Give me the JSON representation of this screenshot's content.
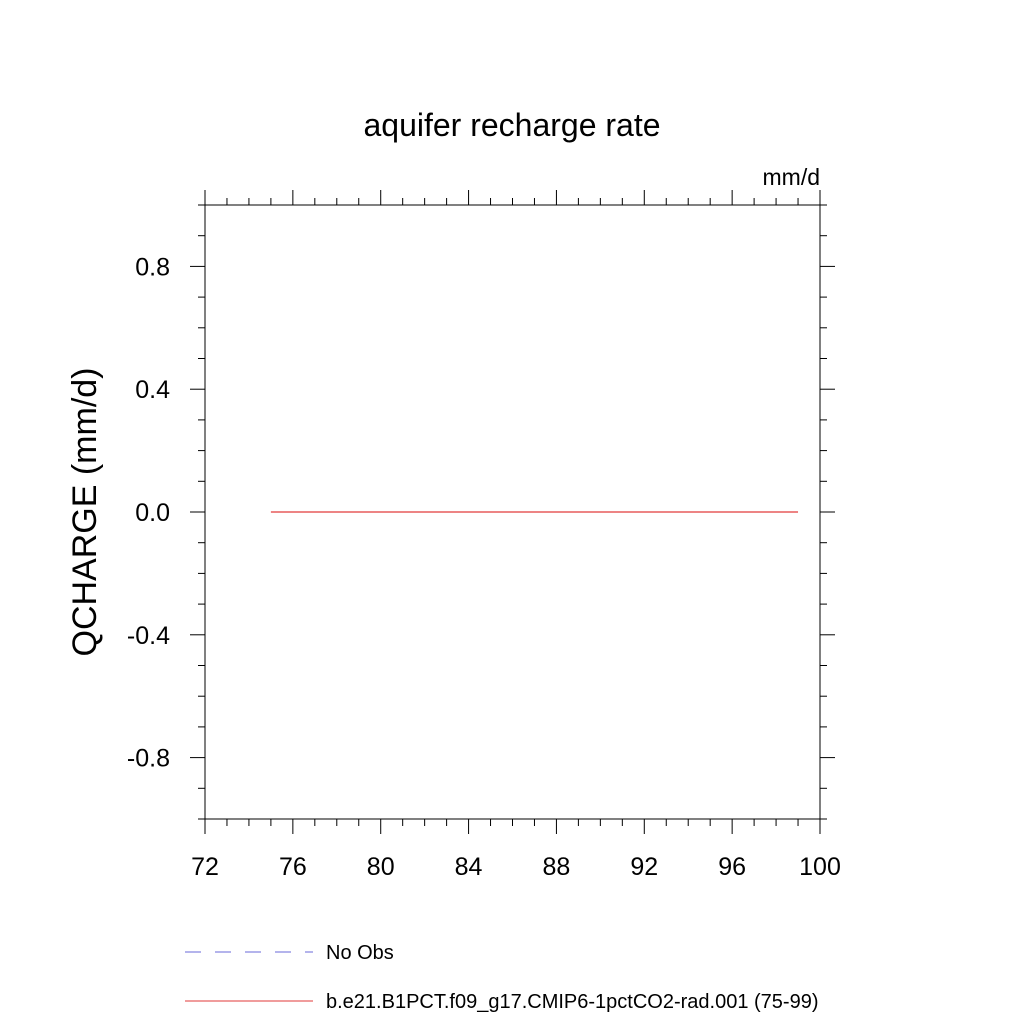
{
  "chart_data": {
    "type": "line",
    "title": "aquifer recharge rate",
    "units_label": "mm/d",
    "xlabel": "",
    "ylabel": "QCHARGE  (mm/d)",
    "xlim": [
      72,
      100
    ],
    "ylim": [
      -1.0,
      1.0
    ],
    "x_ticks": [
      72,
      76,
      80,
      84,
      88,
      92,
      96,
      100
    ],
    "x_tick_labels": [
      "72",
      "76",
      "80",
      "84",
      "88",
      "92",
      "96",
      "100"
    ],
    "y_ticks": [
      -0.8,
      -0.4,
      0.0,
      0.4,
      0.8
    ],
    "y_tick_labels": [
      "-0.8",
      "-0.4",
      "0.0",
      "0.4",
      "0.8"
    ],
    "grid": false,
    "legend_position": "bottom",
    "series": [
      {
        "name": "No Obs",
        "color": "#6a6ad8",
        "dash": "dashed",
        "x": [],
        "y": []
      },
      {
        "name": "b.e21.B1PCT.f09_g17.CMIP6-1pctCO2-rad.001 (75-99)",
        "color": "#e23a3a",
        "dash": "solid",
        "x": [
          75,
          76,
          77,
          78,
          79,
          80,
          81,
          82,
          83,
          84,
          85,
          86,
          87,
          88,
          89,
          90,
          91,
          92,
          93,
          94,
          95,
          96,
          97,
          98,
          99
        ],
        "y": [
          0,
          0,
          0,
          0,
          0,
          0,
          0,
          0,
          0,
          0,
          0,
          0,
          0,
          0,
          0,
          0,
          0,
          0,
          0,
          0,
          0,
          0,
          0,
          0,
          0
        ]
      }
    ]
  }
}
